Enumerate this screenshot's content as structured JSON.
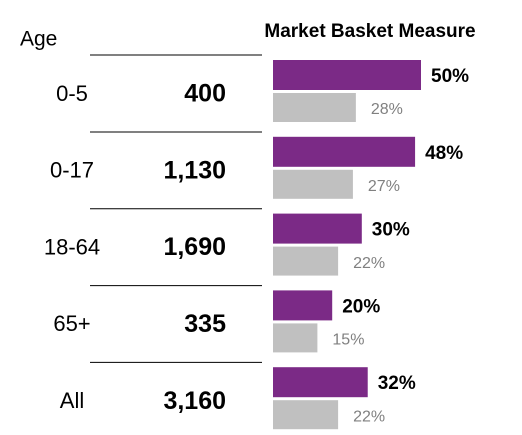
{
  "chart_data": {
    "type": "bar",
    "title": "Market Basket Measure",
    "category_header": "Age",
    "categories": [
      "0-5",
      "0-17",
      "18-64",
      "65+",
      "All"
    ],
    "counts": [
      "400",
      "1,130",
      "1,690",
      "335",
      "3,160"
    ],
    "series": [
      {
        "color": "#7b2a86",
        "values": [
          50,
          48,
          30,
          20,
          32
        ],
        "value_labels": [
          "50%",
          "48%",
          "30%",
          "20%",
          "32%"
        ]
      },
      {
        "color": "#c0c0c0",
        "values": [
          28,
          27,
          22,
          15,
          22
        ],
        "value_labels": [
          "28%",
          "27%",
          "22%",
          "15%",
          "22%"
        ]
      }
    ]
  }
}
